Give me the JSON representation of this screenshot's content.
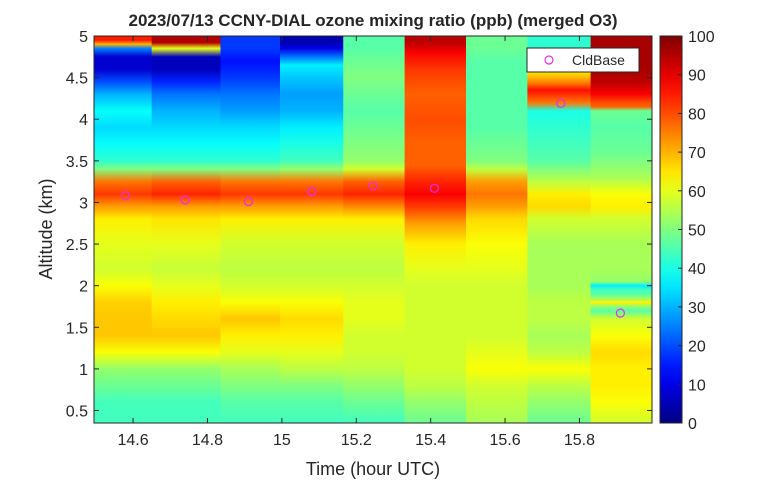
{
  "chart_data": {
    "type": "heatmap",
    "title": "2023/07/13 CCNY-DIAL ozone mixing ratio (ppb) (merged O3)",
    "xlabel": "Time (hour UTC)",
    "ylabel": "Altitude (km)",
    "xlim": [
      14.495,
      15.995
    ],
    "ylim": [
      0.35,
      5.0
    ],
    "xticks": [
      14.6,
      14.8,
      15.0,
      15.2,
      15.4,
      15.6,
      15.8
    ],
    "xtick_labels": [
      "14.6",
      "14.8",
      "15",
      "15.2",
      "15.4",
      "15.6",
      "15.8"
    ],
    "yticks": [
      0.5,
      1.0,
      1.5,
      2.0,
      2.5,
      3.0,
      3.5,
      4.0,
      4.5,
      5.0
    ],
    "ytick_labels": [
      "0.5",
      "1",
      "1.5",
      "2",
      "2.5",
      "3",
      "3.5",
      "4",
      "4.5",
      "5"
    ],
    "colorbar": {
      "colormap": "jet",
      "limits": [
        0,
        100
      ],
      "ticks": [
        0,
        10,
        20,
        30,
        40,
        50,
        60,
        70,
        80,
        90,
        100
      ],
      "tick_labels": [
        "0",
        "10",
        "20",
        "30",
        "40",
        "50",
        "60",
        "70",
        "80",
        "90",
        "100"
      ]
    },
    "time_columns": [
      {
        "start": 14.495,
        "end": 14.65,
        "profile": [
          [
            0.35,
            44
          ],
          [
            0.6,
            44
          ],
          [
            0.8,
            48
          ],
          [
            1.0,
            52
          ],
          [
            1.2,
            62
          ],
          [
            1.4,
            68
          ],
          [
            1.6,
            68
          ],
          [
            1.8,
            67
          ],
          [
            2.0,
            62
          ],
          [
            2.2,
            58
          ],
          [
            2.5,
            60
          ],
          [
            2.8,
            64
          ],
          [
            2.95,
            72
          ],
          [
            3.1,
            82
          ],
          [
            3.25,
            76
          ],
          [
            3.4,
            50
          ],
          [
            3.5,
            42
          ],
          [
            3.7,
            38
          ],
          [
            3.9,
            34
          ],
          [
            4.1,
            38
          ],
          [
            4.3,
            30
          ],
          [
            4.45,
            20
          ],
          [
            4.6,
            8
          ],
          [
            4.75,
            8
          ],
          [
            4.85,
            25
          ],
          [
            4.9,
            70
          ],
          [
            4.95,
            85
          ],
          [
            5.0,
            85
          ]
        ]
      },
      {
        "start": 14.65,
        "end": 14.835,
        "profile": [
          [
            0.35,
            44
          ],
          [
            0.6,
            44
          ],
          [
            0.8,
            48
          ],
          [
            1.0,
            52
          ],
          [
            1.2,
            62
          ],
          [
            1.4,
            68
          ],
          [
            1.6,
            66
          ],
          [
            1.8,
            64
          ],
          [
            2.0,
            60
          ],
          [
            2.2,
            57
          ],
          [
            2.5,
            60
          ],
          [
            2.8,
            65
          ],
          [
            2.95,
            72
          ],
          [
            3.1,
            84
          ],
          [
            3.25,
            78
          ],
          [
            3.4,
            50
          ],
          [
            3.5,
            42
          ],
          [
            3.7,
            38
          ],
          [
            3.9,
            34
          ],
          [
            4.1,
            30
          ],
          [
            4.3,
            24
          ],
          [
            4.45,
            16
          ],
          [
            4.6,
            6
          ],
          [
            4.75,
            6
          ],
          [
            4.85,
            60
          ],
          [
            4.92,
            95
          ],
          [
            5.0,
            95
          ]
        ]
      },
      {
        "start": 14.835,
        "end": 14.995,
        "profile": [
          [
            0.35,
            44
          ],
          [
            0.6,
            46
          ],
          [
            0.8,
            50
          ],
          [
            1.0,
            54
          ],
          [
            1.2,
            60
          ],
          [
            1.4,
            64
          ],
          [
            1.6,
            68
          ],
          [
            1.8,
            62
          ],
          [
            2.0,
            58
          ],
          [
            2.2,
            56
          ],
          [
            2.5,
            58
          ],
          [
            2.8,
            64
          ],
          [
            2.95,
            72
          ],
          [
            3.1,
            82
          ],
          [
            3.25,
            76
          ],
          [
            3.4,
            50
          ],
          [
            3.5,
            42
          ],
          [
            3.7,
            38
          ],
          [
            3.9,
            34
          ],
          [
            4.1,
            28
          ],
          [
            4.3,
            24
          ],
          [
            4.5,
            18
          ],
          [
            4.7,
            14
          ],
          [
            4.85,
            18
          ],
          [
            5.0,
            18
          ]
        ]
      },
      {
        "start": 14.995,
        "end": 15.165,
        "profile": [
          [
            0.35,
            44
          ],
          [
            0.6,
            46
          ],
          [
            0.8,
            50
          ],
          [
            1.0,
            56
          ],
          [
            1.2,
            60
          ],
          [
            1.4,
            64
          ],
          [
            1.6,
            66
          ],
          [
            1.8,
            62
          ],
          [
            2.0,
            58
          ],
          [
            2.2,
            56
          ],
          [
            2.5,
            58
          ],
          [
            2.8,
            64
          ],
          [
            2.95,
            72
          ],
          [
            3.1,
            82
          ],
          [
            3.25,
            76
          ],
          [
            3.4,
            52
          ],
          [
            3.5,
            44
          ],
          [
            3.7,
            40
          ],
          [
            3.9,
            36
          ],
          [
            4.1,
            30
          ],
          [
            4.3,
            28
          ],
          [
            4.5,
            32
          ],
          [
            4.65,
            36
          ],
          [
            4.75,
            24
          ],
          [
            4.85,
            10
          ],
          [
            4.92,
            5
          ],
          [
            5.0,
            5
          ]
        ]
      },
      {
        "start": 15.165,
        "end": 15.33,
        "profile": [
          [
            0.35,
            44
          ],
          [
            0.6,
            48
          ],
          [
            0.8,
            52
          ],
          [
            1.0,
            56
          ],
          [
            1.2,
            58
          ],
          [
            1.4,
            58
          ],
          [
            1.6,
            60
          ],
          [
            1.8,
            60
          ],
          [
            2.0,
            58
          ],
          [
            2.2,
            56
          ],
          [
            2.5,
            58
          ],
          [
            2.8,
            64
          ],
          [
            2.95,
            74
          ],
          [
            3.1,
            84
          ],
          [
            3.25,
            78
          ],
          [
            3.4,
            58
          ],
          [
            3.5,
            52
          ],
          [
            3.7,
            50
          ],
          [
            3.9,
            48
          ],
          [
            4.1,
            46
          ],
          [
            4.3,
            48
          ],
          [
            4.5,
            50
          ],
          [
            4.7,
            48
          ],
          [
            4.85,
            46
          ],
          [
            5.0,
            46
          ]
        ]
      },
      {
        "start": 15.33,
        "end": 15.495,
        "profile": [
          [
            0.35,
            48
          ],
          [
            0.6,
            52
          ],
          [
            0.8,
            56
          ],
          [
            1.0,
            58
          ],
          [
            1.2,
            58
          ],
          [
            1.4,
            58
          ],
          [
            1.6,
            58
          ],
          [
            1.8,
            58
          ],
          [
            2.0,
            58
          ],
          [
            2.2,
            60
          ],
          [
            2.5,
            64
          ],
          [
            2.75,
            72
          ],
          [
            2.95,
            82
          ],
          [
            3.1,
            88
          ],
          [
            3.25,
            84
          ],
          [
            3.45,
            78
          ],
          [
            3.7,
            78
          ],
          [
            4.0,
            80
          ],
          [
            4.3,
            78
          ],
          [
            4.6,
            82
          ],
          [
            4.8,
            88
          ],
          [
            4.92,
            94
          ],
          [
            5.0,
            94
          ]
        ]
      },
      {
        "start": 15.495,
        "end": 15.66,
        "profile": [
          [
            0.35,
            54
          ],
          [
            0.6,
            56
          ],
          [
            0.8,
            58
          ],
          [
            1.0,
            62
          ],
          [
            1.2,
            60
          ],
          [
            1.4,
            58
          ],
          [
            1.6,
            58
          ],
          [
            1.8,
            58
          ],
          [
            2.0,
            58
          ],
          [
            2.2,
            60
          ],
          [
            2.5,
            62
          ],
          [
            2.8,
            66
          ],
          [
            2.95,
            72
          ],
          [
            3.1,
            76
          ],
          [
            3.25,
            72
          ],
          [
            3.4,
            56
          ],
          [
            3.5,
            50
          ],
          [
            3.7,
            48
          ],
          [
            3.9,
            46
          ],
          [
            4.1,
            46
          ],
          [
            4.3,
            46
          ],
          [
            4.5,
            46
          ],
          [
            4.7,
            46
          ],
          [
            4.85,
            48
          ],
          [
            5.0,
            48
          ]
        ]
      },
      {
        "start": 15.66,
        "end": 15.83,
        "profile": [
          [
            0.35,
            48
          ],
          [
            0.6,
            52
          ],
          [
            0.8,
            56
          ],
          [
            1.0,
            62
          ],
          [
            1.2,
            56
          ],
          [
            1.4,
            54
          ],
          [
            1.6,
            56
          ],
          [
            1.8,
            56
          ],
          [
            2.0,
            54
          ],
          [
            2.2,
            54
          ],
          [
            2.5,
            54
          ],
          [
            2.8,
            58
          ],
          [
            2.95,
            66
          ],
          [
            3.1,
            64
          ],
          [
            3.25,
            56
          ],
          [
            3.4,
            50
          ],
          [
            3.5,
            46
          ],
          [
            3.7,
            44
          ],
          [
            3.9,
            42
          ],
          [
            4.1,
            40
          ],
          [
            4.2,
            76
          ],
          [
            4.35,
            86
          ],
          [
            4.45,
            74
          ],
          [
            4.55,
            66
          ],
          [
            4.65,
            56
          ],
          [
            4.75,
            48
          ],
          [
            4.85,
            42
          ],
          [
            5.0,
            42
          ]
        ]
      },
      {
        "start": 15.83,
        "end": 15.995,
        "profile": [
          [
            0.35,
            58
          ],
          [
            0.6,
            62
          ],
          [
            0.8,
            64
          ],
          [
            1.0,
            64
          ],
          [
            1.2,
            66
          ],
          [
            1.4,
            62
          ],
          [
            1.6,
            58
          ],
          [
            1.7,
            46
          ],
          [
            1.75,
            52
          ],
          [
            1.8,
            64
          ],
          [
            1.85,
            52
          ],
          [
            1.9,
            46
          ],
          [
            1.95,
            44
          ],
          [
            2.0,
            36
          ],
          [
            2.05,
            52
          ],
          [
            2.2,
            54
          ],
          [
            2.5,
            54
          ],
          [
            2.8,
            58
          ],
          [
            2.95,
            64
          ],
          [
            3.1,
            62
          ],
          [
            3.3,
            54
          ],
          [
            3.6,
            48
          ],
          [
            3.9,
            46
          ],
          [
            4.1,
            48
          ],
          [
            4.15,
            78
          ],
          [
            4.2,
            80
          ],
          [
            4.3,
            88
          ],
          [
            4.45,
            94
          ],
          [
            4.6,
            96
          ],
          [
            4.8,
            96
          ],
          [
            5.0,
            96
          ]
        ]
      }
    ],
    "series": [
      {
        "name": "CldBase",
        "marker": "circle",
        "color": "#e62ee6",
        "x": [
          14.58,
          14.74,
          14.91,
          15.08,
          15.245,
          15.41,
          15.75,
          15.91
        ],
        "y": [
          3.08,
          3.03,
          3.01,
          3.13,
          3.2,
          3.17,
          4.19,
          1.67
        ]
      }
    ],
    "legend": {
      "entries": [
        "CldBase"
      ],
      "location": "top-right"
    }
  }
}
